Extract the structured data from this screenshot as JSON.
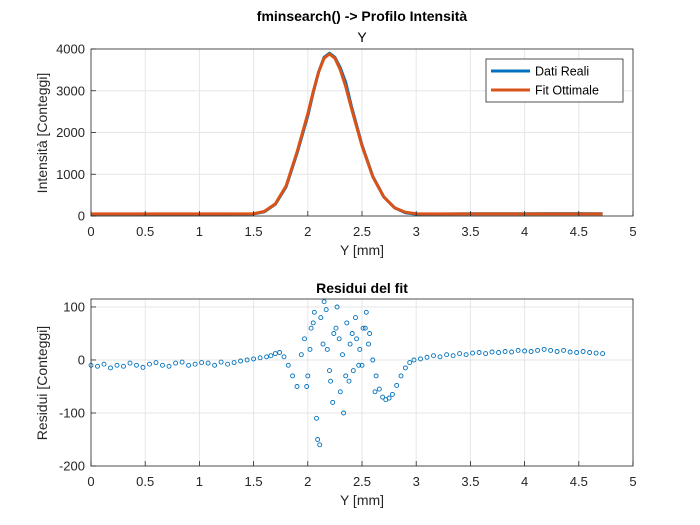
{
  "figure_title": "fminsearch() -> Profilo Intensità",
  "colors": {
    "real": "#0072BD",
    "fit": "#D95319",
    "grid": "#e6e6e6",
    "axis": "#262626"
  },
  "chart_data": [
    {
      "type": "line",
      "title": "Y",
      "xlabel": "Y [mm]",
      "ylabel": "Intensità [Conteggi]",
      "xlim": [
        0,
        5
      ],
      "ylim": [
        0,
        4000
      ],
      "xticks": [
        0,
        0.5,
        1,
        1.5,
        2,
        2.5,
        3,
        3.5,
        4,
        4.5,
        5
      ],
      "xtick_labels": [
        "0",
        "0.5",
        "1",
        "1.5",
        "2",
        "2.5",
        "3",
        "3.5",
        "4",
        "4.5",
        "5"
      ],
      "yticks": [
        0,
        1000,
        2000,
        3000,
        4000
      ],
      "ytick_labels": [
        "0",
        "1000",
        "2000",
        "3000",
        "4000"
      ],
      "grid": true,
      "legend_position": "top-right",
      "series": [
        {
          "name": "Dati Reali",
          "x": [
            0,
            0.25,
            0.5,
            0.75,
            1.0,
            1.25,
            1.5,
            1.6,
            1.7,
            1.8,
            1.9,
            2.0,
            2.05,
            2.1,
            2.15,
            2.2,
            2.25,
            2.3,
            2.35,
            2.4,
            2.5,
            2.6,
            2.7,
            2.8,
            2.9,
            3.0,
            3.25,
            3.5,
            3.75,
            4.0,
            4.25,
            4.5,
            4.72
          ],
          "y": [
            45,
            45,
            44,
            42,
            40,
            40,
            50,
            100,
            280,
            700,
            1500,
            2400,
            2950,
            3450,
            3800,
            3900,
            3800,
            3550,
            3200,
            2650,
            1700,
            950,
            460,
            200,
            80,
            45,
            48,
            52,
            54,
            56,
            58,
            57,
            56
          ]
        },
        {
          "name": "Fit Ottimale",
          "x": [
            0,
            0.25,
            0.5,
            0.75,
            1.0,
            1.25,
            1.5,
            1.6,
            1.7,
            1.8,
            1.9,
            2.0,
            2.05,
            2.1,
            2.15,
            2.2,
            2.25,
            2.3,
            2.35,
            2.4,
            2.5,
            2.6,
            2.7,
            2.8,
            2.9,
            3.0,
            3.25,
            3.5,
            3.75,
            4.0,
            4.25,
            4.5,
            4.72
          ],
          "y": [
            50,
            50,
            50,
            50,
            50,
            50,
            55,
            110,
            290,
            720,
            1530,
            2450,
            2980,
            3450,
            3780,
            3880,
            3780,
            3500,
            3100,
            2600,
            1680,
            940,
            460,
            200,
            90,
            55,
            50,
            50,
            50,
            50,
            50,
            50,
            50
          ]
        }
      ]
    },
    {
      "type": "scatter",
      "title": "Residui del fit",
      "xlabel": "Y [mm]",
      "ylabel": "Residui [Conteggi]",
      "xlim": [
        0,
        5
      ],
      "ylim": [
        -200,
        115
      ],
      "xticks": [
        0,
        0.5,
        1,
        1.5,
        2,
        2.5,
        3,
        3.5,
        4,
        4.5,
        5
      ],
      "xtick_labels": [
        "0",
        "0.5",
        "1",
        "1.5",
        "2",
        "2.5",
        "3",
        "3.5",
        "4",
        "4.5",
        "5"
      ],
      "yticks": [
        -200,
        -100,
        0,
        100
      ],
      "ytick_labels": [
        "-200",
        "-100",
        "0",
        "100"
      ],
      "grid": true,
      "series": [
        {
          "x": [
            0.0,
            0.06,
            0.12,
            0.18,
            0.24,
            0.3,
            0.36,
            0.42,
            0.48,
            0.54,
            0.6,
            0.66,
            0.72,
            0.78,
            0.84,
            0.9,
            0.96,
            1.02,
            1.08,
            1.14,
            1.2,
            1.26,
            1.32,
            1.38,
            1.44,
            1.5,
            1.56,
            1.62,
            1.66,
            1.7,
            1.74,
            1.78,
            1.82,
            1.86,
            1.9,
            1.94,
            1.97,
            2.0,
            2.03,
            2.06,
            2.09,
            2.12,
            2.15,
            2.18,
            2.21,
            2.24,
            2.27,
            2.3,
            2.33,
            2.36,
            2.39,
            2.42,
            2.45,
            2.48,
            2.51,
            2.54,
            2.57,
            2.6,
            2.63,
            2.66,
            2.69,
            2.72,
            2.75,
            2.78,
            2.82,
            2.86,
            2.9,
            2.94,
            2.98,
            3.04,
            3.1,
            3.16,
            3.22,
            3.28,
            3.34,
            3.4,
            3.46,
            3.52,
            3.58,
            3.64,
            3.7,
            3.76,
            3.82,
            3.88,
            3.94,
            4.0,
            4.06,
            4.12,
            4.18,
            4.24,
            4.3,
            4.36,
            4.42,
            4.48,
            4.54,
            4.6,
            4.66,
            4.72,
            2.08,
            2.11,
            2.14,
            2.2,
            2.26,
            2.32,
            2.38,
            2.44,
            2.5,
            2.56,
            2.62,
            1.99,
            2.02,
            2.05,
            2.17,
            2.23,
            2.29,
            2.35,
            2.41,
            2.47,
            2.53
          ],
          "y": [
            -10,
            -12,
            -8,
            -15,
            -10,
            -12,
            -6,
            -10,
            -14,
            -8,
            -5,
            -10,
            -12,
            -6,
            -4,
            -10,
            -8,
            -5,
            -6,
            -10,
            -4,
            -8,
            -5,
            -2,
            0,
            2,
            4,
            6,
            8,
            12,
            14,
            6,
            -10,
            -30,
            -50,
            10,
            40,
            -30,
            60,
            90,
            -150,
            80,
            110,
            20,
            -40,
            50,
            100,
            -60,
            -100,
            70,
            30,
            -20,
            40,
            20,
            60,
            90,
            50,
            0,
            -30,
            -55,
            -70,
            -75,
            -72,
            -65,
            -48,
            -30,
            -15,
            -5,
            0,
            2,
            5,
            8,
            6,
            10,
            8,
            12,
            10,
            13,
            14,
            12,
            15,
            14,
            16,
            15,
            18,
            17,
            16,
            18,
            20,
            18,
            16,
            18,
            15,
            14,
            16,
            14,
            13,
            12,
            -110,
            -160,
            30,
            -20,
            60,
            10,
            -40,
            80,
            -10,
            30,
            -60,
            -50,
            20,
            70,
            95,
            -80,
            40,
            -30,
            50,
            -10,
            60
          ]
        }
      ]
    }
  ],
  "legend": {
    "items": [
      "Dati Reali",
      "Fit Ottimale"
    ]
  }
}
